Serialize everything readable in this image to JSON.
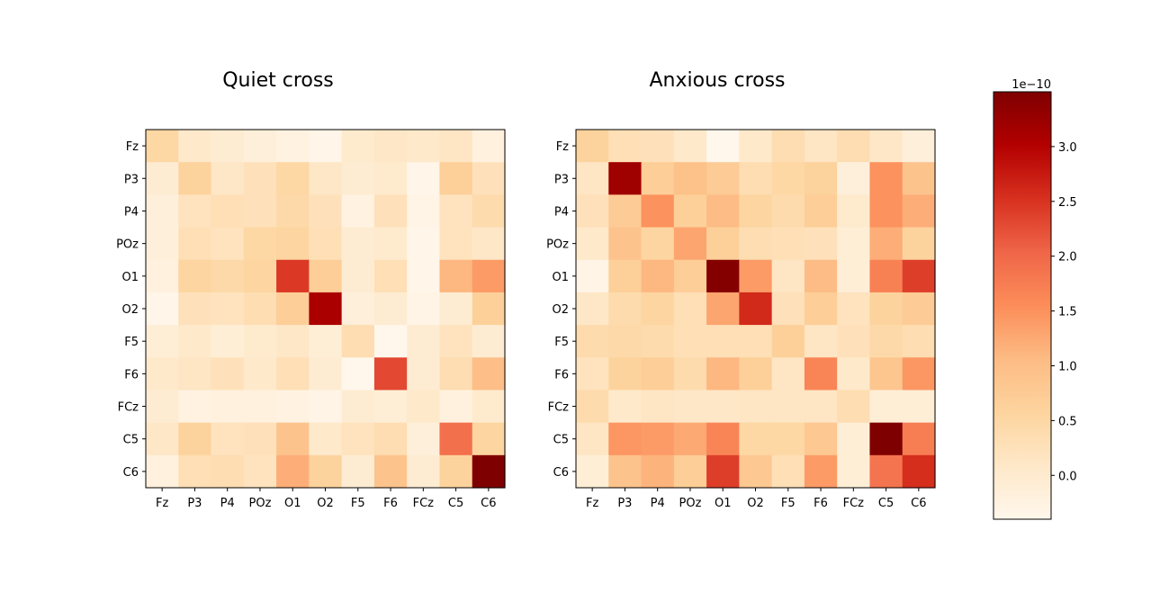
{
  "chart_data": {
    "type": "heatmap",
    "colormap": "OrRd",
    "colorbar": {
      "multiplier_label": "1e−10",
      "vmin": -0.4,
      "vmax": 3.5,
      "ticks": [
        0.0,
        0.5,
        1.0,
        1.5,
        2.0,
        2.5,
        3.0
      ],
      "tick_labels": [
        "0.0",
        "0.5",
        "1.0",
        "1.5",
        "2.0",
        "2.5",
        "3.0"
      ]
    },
    "panels": [
      {
        "title": "Quiet cross",
        "x_labels": [
          "Fz",
          "P3",
          "P4",
          "POz",
          "O1",
          "O2",
          "F5",
          "F6",
          "FCz",
          "C5",
          "C6"
        ],
        "y_labels": [
          "Fz",
          "P3",
          "P4",
          "POz",
          "O1",
          "O2",
          "F5",
          "F6",
          "FCz",
          "C5",
          "C6"
        ],
        "values": [
          [
            0.5,
            0.05,
            -0.05,
            -0.15,
            -0.25,
            -0.35,
            0.0,
            0.1,
            0.05,
            0.15,
            -0.2
          ],
          [
            -0.05,
            0.6,
            0.1,
            0.25,
            0.5,
            0.1,
            -0.05,
            0.0,
            -0.35,
            0.65,
            0.25
          ],
          [
            -0.15,
            0.2,
            0.3,
            0.25,
            0.45,
            0.25,
            -0.25,
            0.25,
            -0.3,
            0.2,
            0.4
          ],
          [
            -0.15,
            0.3,
            0.2,
            0.5,
            0.55,
            0.3,
            -0.05,
            0.0,
            -0.35,
            0.2,
            0.1
          ],
          [
            -0.2,
            0.55,
            0.45,
            0.55,
            2.45,
            0.7,
            -0.05,
            0.3,
            -0.35,
            1.1,
            1.4
          ],
          [
            -0.35,
            0.25,
            0.2,
            0.35,
            0.7,
            3.1,
            -0.15,
            -0.05,
            -0.3,
            -0.05,
            0.65
          ],
          [
            -0.1,
            0.05,
            -0.1,
            0.0,
            0.1,
            -0.1,
            0.35,
            -0.45,
            -0.05,
            0.2,
            -0.05
          ],
          [
            0.05,
            0.15,
            0.25,
            0.05,
            0.3,
            -0.05,
            -0.45,
            2.3,
            -0.05,
            0.35,
            1.0
          ],
          [
            -0.05,
            -0.25,
            -0.2,
            -0.2,
            -0.25,
            -0.3,
            -0.05,
            -0.1,
            0.05,
            -0.2,
            0.0
          ],
          [
            0.1,
            0.6,
            0.2,
            0.25,
            0.9,
            0.05,
            0.2,
            0.35,
            -0.15,
            1.9,
            0.55
          ],
          [
            -0.2,
            0.3,
            0.35,
            0.2,
            1.2,
            0.6,
            -0.05,
            0.9,
            -0.05,
            0.6,
            3.5
          ]
        ]
      },
      {
        "title": "Anxious cross",
        "x_labels": [
          "Fz",
          "P3",
          "P4",
          "POz",
          "O1",
          "O2",
          "F5",
          "F6",
          "FCz",
          "C5",
          "C6"
        ],
        "y_labels": [
          "Fz",
          "P3",
          "P4",
          "POz",
          "O1",
          "O2",
          "F5",
          "F6",
          "FCz",
          "C5",
          "C6"
        ],
        "values": [
          [
            0.6,
            0.3,
            0.25,
            0.05,
            -0.4,
            0.05,
            0.35,
            0.15,
            0.35,
            0.1,
            -0.15
          ],
          [
            0.15,
            3.2,
            0.7,
            0.95,
            0.75,
            0.35,
            0.5,
            0.6,
            -0.15,
            1.5,
            0.9
          ],
          [
            0.25,
            0.75,
            1.5,
            0.65,
            1.05,
            0.55,
            0.4,
            0.7,
            0.0,
            1.5,
            1.2
          ],
          [
            0.05,
            0.9,
            0.55,
            1.3,
            0.65,
            0.35,
            0.3,
            0.25,
            -0.1,
            1.2,
            0.6
          ],
          [
            -0.3,
            0.65,
            1.1,
            0.7,
            3.45,
            1.4,
            0.15,
            1.05,
            -0.1,
            1.7,
            2.4
          ],
          [
            0.1,
            0.4,
            0.55,
            0.3,
            1.3,
            2.6,
            0.25,
            0.7,
            0.2,
            0.6,
            0.75
          ],
          [
            0.4,
            0.45,
            0.4,
            0.3,
            0.3,
            0.3,
            0.65,
            0.15,
            0.25,
            0.45,
            0.35
          ],
          [
            0.2,
            0.6,
            0.7,
            0.4,
            1.1,
            0.65,
            0.15,
            1.65,
            0.05,
            0.85,
            1.45
          ],
          [
            0.4,
            0.05,
            0.15,
            0.1,
            0.1,
            0.15,
            0.15,
            0.15,
            0.35,
            -0.1,
            -0.1
          ],
          [
            0.15,
            1.45,
            1.4,
            1.25,
            1.65,
            0.5,
            0.5,
            0.8,
            -0.1,
            3.5,
            1.75
          ],
          [
            -0.1,
            0.9,
            1.15,
            0.7,
            2.4,
            0.8,
            0.3,
            1.4,
            -0.1,
            1.85,
            2.55
          ]
        ]
      }
    ]
  }
}
